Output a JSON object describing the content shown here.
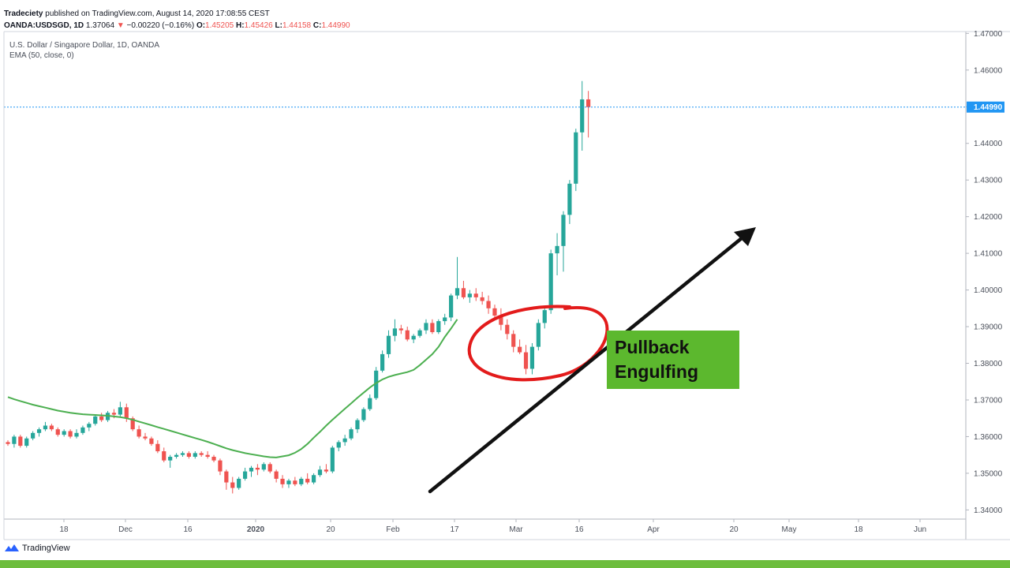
{
  "header": {
    "publisher": "Tradeciety",
    "published_text": " published on TradingView.com, August 14, 2020 17:08:55 CEST",
    "symbol": "OANDA:USDSGD, 1D",
    "last": "1.37064",
    "change": "−0.00220 (−0.16%)",
    "o_label": "O:",
    "o_value": "1.45205",
    "h_label": "H:",
    "h_value": "1.45426",
    "l_label": "L:",
    "l_value": "1.44158",
    "c_label": "C:",
    "c_value": "1.44990"
  },
  "legend": {
    "series_title": "U.S. Dollar / Singapore Dollar, 1D, OANDA",
    "indicator": "EMA (50, close, 0)"
  },
  "annotation": {
    "text": "Pullback\nEngulfing"
  },
  "footer": {
    "brand": "TradingView"
  },
  "colors": {
    "up": "#26a69a",
    "down": "#ef5350",
    "ema": "#4caf50",
    "price_line": "#2196f3",
    "circle": "#e31b1b",
    "arrow": "#111111",
    "annotation_bg": "#5cb82e",
    "footer_bar": "#6dbd3d"
  },
  "chart_data": {
    "type": "candlestick",
    "y_ticks": [
      "1.47000",
      "1.46000",
      "1.45000",
      "1.44000",
      "1.43000",
      "1.42000",
      "1.41000",
      "1.40000",
      "1.39000",
      "1.38000",
      "1.37000",
      "1.36000",
      "1.35000",
      "1.34000"
    ],
    "ylim": [
      1.3375,
      1.4705
    ],
    "current_price": "1.44990",
    "x_ticks": [
      "18",
      "Dec",
      "16",
      "2020",
      "20",
      "Feb",
      "17",
      "Mar",
      "16",
      "Apr",
      "20",
      "May",
      "18",
      "Jun"
    ],
    "candles": [
      [
        1.3585,
        1.359,
        1.3575,
        1.358
      ],
      [
        1.358,
        1.3605,
        1.357,
        1.36
      ],
      [
        1.36,
        1.3605,
        1.357,
        1.3575
      ],
      [
        1.3575,
        1.36,
        1.357,
        1.3595
      ],
      [
        1.3595,
        1.3615,
        1.359,
        1.361
      ],
      [
        1.361,
        1.3625,
        1.36,
        1.362
      ],
      [
        1.362,
        1.364,
        1.3615,
        1.363
      ],
      [
        1.363,
        1.3635,
        1.3615,
        1.362
      ],
      [
        1.362,
        1.3625,
        1.36,
        1.3605
      ],
      [
        1.3605,
        1.362,
        1.36,
        1.3615
      ],
      [
        1.3615,
        1.362,
        1.3595,
        1.36
      ],
      [
        1.36,
        1.362,
        1.3595,
        1.361
      ],
      [
        1.361,
        1.363,
        1.3605,
        1.3625
      ],
      [
        1.3625,
        1.364,
        1.3615,
        1.3635
      ],
      [
        1.3635,
        1.366,
        1.363,
        1.3655
      ],
      [
        1.3655,
        1.3665,
        1.364,
        1.3645
      ],
      [
        1.3645,
        1.367,
        1.364,
        1.3665
      ],
      [
        1.3665,
        1.3675,
        1.365,
        1.366
      ],
      [
        1.366,
        1.3695,
        1.3655,
        1.368
      ],
      [
        1.368,
        1.369,
        1.364,
        1.365
      ],
      [
        1.365,
        1.3655,
        1.3615,
        1.362
      ],
      [
        1.362,
        1.363,
        1.3595,
        1.36
      ],
      [
        1.36,
        1.361,
        1.359,
        1.3595
      ],
      [
        1.3595,
        1.36,
        1.3575,
        1.358
      ],
      [
        1.358,
        1.359,
        1.3555,
        1.356
      ],
      [
        1.356,
        1.357,
        1.353,
        1.3535
      ],
      [
        1.3535,
        1.355,
        1.3515,
        1.3545
      ],
      [
        1.3545,
        1.3555,
        1.354,
        1.355
      ],
      [
        1.355,
        1.356,
        1.3545,
        1.3555
      ],
      [
        1.3555,
        1.356,
        1.354,
        1.3545
      ],
      [
        1.3545,
        1.356,
        1.354,
        1.3555
      ],
      [
        1.3555,
        1.356,
        1.3545,
        1.355
      ],
      [
        1.355,
        1.356,
        1.354,
        1.3545
      ],
      [
        1.3545,
        1.355,
        1.353,
        1.3535
      ],
      [
        1.3535,
        1.354,
        1.3495,
        1.3505
      ],
      [
        1.3505,
        1.351,
        1.3455,
        1.3475
      ],
      [
        1.3475,
        1.349,
        1.3445,
        1.346
      ],
      [
        1.346,
        1.349,
        1.3455,
        1.3485
      ],
      [
        1.3485,
        1.3515,
        1.348,
        1.3505
      ],
      [
        1.3505,
        1.352,
        1.349,
        1.3515
      ],
      [
        1.3515,
        1.3525,
        1.3495,
        1.351
      ],
      [
        1.351,
        1.353,
        1.3505,
        1.3525
      ],
      [
        1.3525,
        1.353,
        1.35,
        1.3505
      ],
      [
        1.3505,
        1.351,
        1.3475,
        1.3485
      ],
      [
        1.3485,
        1.3495,
        1.346,
        1.347
      ],
      [
        1.347,
        1.3485,
        1.346,
        1.348
      ],
      [
        1.348,
        1.349,
        1.3465,
        1.347
      ],
      [
        1.347,
        1.349,
        1.3465,
        1.3485
      ],
      [
        1.3485,
        1.35,
        1.347,
        1.3475
      ],
      [
        1.3475,
        1.35,
        1.347,
        1.3495
      ],
      [
        1.3495,
        1.352,
        1.349,
        1.351
      ],
      [
        1.351,
        1.3525,
        1.35,
        1.3505
      ],
      [
        1.3505,
        1.3575,
        1.35,
        1.357
      ],
      [
        1.357,
        1.359,
        1.356,
        1.3585
      ],
      [
        1.3585,
        1.3605,
        1.3575,
        1.3595
      ],
      [
        1.3595,
        1.3625,
        1.359,
        1.362
      ],
      [
        1.362,
        1.365,
        1.361,
        1.3645
      ],
      [
        1.3645,
        1.368,
        1.364,
        1.3675
      ],
      [
        1.3675,
        1.3715,
        1.367,
        1.3705
      ],
      [
        1.3705,
        1.379,
        1.37,
        1.378
      ],
      [
        1.378,
        1.3835,
        1.3775,
        1.3825
      ],
      [
        1.3825,
        1.389,
        1.3815,
        1.3875
      ],
      [
        1.3875,
        1.392,
        1.386,
        1.3895
      ],
      [
        1.3895,
        1.3905,
        1.388,
        1.389
      ],
      [
        1.389,
        1.39,
        1.386,
        1.3865
      ],
      [
        1.3865,
        1.388,
        1.3855,
        1.3875
      ],
      [
        1.3875,
        1.3895,
        1.387,
        1.389
      ],
      [
        1.389,
        1.392,
        1.388,
        1.391
      ],
      [
        1.391,
        1.392,
        1.388,
        1.3885
      ],
      [
        1.3885,
        1.392,
        1.388,
        1.3915
      ],
      [
        1.3915,
        1.3935,
        1.3905,
        1.3925
      ],
      [
        1.3925,
        1.399,
        1.3915,
        1.3985
      ],
      [
        1.3985,
        1.409,
        1.3975,
        1.4005
      ],
      [
        1.4005,
        1.4025,
        1.3975,
        1.398
      ],
      [
        1.398,
        1.4,
        1.3965,
        1.399
      ],
      [
        1.399,
        1.4005,
        1.397,
        1.398
      ],
      [
        1.398,
        1.3995,
        1.396,
        1.397
      ],
      [
        1.397,
        1.3985,
        1.3935,
        1.395
      ],
      [
        1.395,
        1.396,
        1.392,
        1.393
      ],
      [
        1.393,
        1.395,
        1.389,
        1.3905
      ],
      [
        1.3905,
        1.392,
        1.3865,
        1.388
      ],
      [
        1.388,
        1.389,
        1.383,
        1.3845
      ],
      [
        1.3845,
        1.3865,
        1.3825,
        1.383
      ],
      [
        1.383,
        1.385,
        1.377,
        1.3785
      ],
      [
        1.3785,
        1.3855,
        1.377,
        1.3845
      ],
      [
        1.3845,
        1.392,
        1.3835,
        1.391
      ],
      [
        1.391,
        1.3955,
        1.3895,
        1.3945
      ],
      [
        1.3945,
        1.411,
        1.3935,
        1.41
      ],
      [
        1.41,
        1.4155,
        1.404,
        1.412
      ],
      [
        1.412,
        1.4215,
        1.405,
        1.4205
      ],
      [
        1.4205,
        1.43,
        1.418,
        1.429
      ],
      [
        1.429,
        1.444,
        1.427,
        1.443
      ],
      [
        1.443,
        1.457,
        1.438,
        1.452
      ],
      [
        1.452,
        1.4543,
        1.4416,
        1.4499
      ]
    ],
    "ema": [
      1.3708,
      1.3702,
      1.3697,
      1.3692,
      1.3687,
      1.3683,
      1.3679,
      1.3675,
      1.3671,
      1.3668,
      1.3665,
      1.3663,
      1.3661,
      1.366,
      1.3659,
      1.3658,
      1.3657,
      1.3655,
      1.3653,
      1.365,
      1.3646,
      1.3641,
      1.3636,
      1.3631,
      1.3626,
      1.3621,
      1.3616,
      1.3611,
      1.3606,
      1.3601,
      1.3596,
      1.3591,
      1.3586,
      1.358,
      1.3574,
      1.3568,
      1.3563,
      1.3559,
      1.3555,
      1.3552,
      1.3549,
      1.3546,
      1.3544,
      1.3543,
      1.3546,
      1.3549,
      1.3556,
      1.3566,
      1.358,
      1.3597,
      1.3613,
      1.363,
      1.3646,
      1.3661,
      1.3676,
      1.3691,
      1.3706,
      1.372,
      1.3734,
      1.3746,
      1.3756,
      1.3763,
      1.3768,
      1.3772,
      1.3776,
      1.3782,
      1.3795,
      1.381,
      1.3825,
      1.3845,
      1.3872,
      1.3895,
      1.392
    ]
  }
}
